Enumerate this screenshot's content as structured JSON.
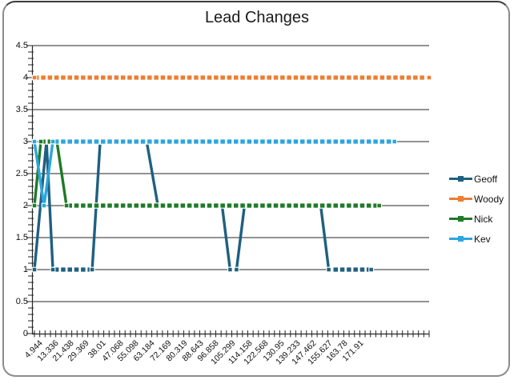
{
  "chart_data": {
    "type": "line",
    "title": "Lead Changes",
    "grid": true,
    "legend_position": "right",
    "y_axis": {
      "min": 0,
      "max": 4.5,
      "tick_step": 0.5,
      "tick_labels": [
        "0",
        "0.5",
        "1",
        "1.5",
        "2",
        "2.5",
        "3",
        "3.5",
        "4",
        "4.5"
      ]
    },
    "x_axis": {
      "tick_labels": [
        "4.944",
        "13.336",
        "21.438",
        "29.369",
        "38.01",
        "47.068",
        "55.098",
        "63.184",
        "72.169",
        "80.319",
        "88.643",
        "96.858",
        "105.299",
        "114.158",
        "122.568",
        "130.95",
        "139.233",
        "147.462",
        "155.627",
        "163.78",
        "171.91"
      ],
      "t_min": 4.944,
      "t_label_step": 8.348,
      "t_max": 210.4,
      "minor_tick_count": 75
    },
    "series": [
      {
        "name": "Geoff",
        "color": "#1F6080",
        "points": [
          [
            4.944,
            1
          ],
          [
            11.21,
            3
          ],
          [
            14.55,
            1
          ],
          [
            35.0,
            1
          ],
          [
            39.17,
            3
          ],
          [
            63.38,
            3
          ],
          [
            69.22,
            2
          ],
          [
            102.62,
            2
          ],
          [
            106.79,
            1
          ],
          [
            110.13,
            1
          ],
          [
            114.3,
            2
          ],
          [
            153.96,
            2
          ],
          [
            158.14,
            1
          ],
          [
            180.26,
            1
          ]
        ]
      },
      {
        "name": "Woody",
        "color": "#ED7D31",
        "points": [
          [
            4.944,
            4
          ],
          [
            210.4,
            4
          ]
        ]
      },
      {
        "name": "Nick",
        "color": "#1F7A28",
        "points": [
          [
            4.944,
            2
          ],
          [
            8.28,
            3
          ],
          [
            16.63,
            3
          ],
          [
            21.64,
            2
          ],
          [
            184.43,
            2
          ]
        ]
      },
      {
        "name": "Kev",
        "color": "#2CA5DE",
        "points": [
          [
            4.944,
            3
          ],
          [
            9.95,
            2
          ],
          [
            14.55,
            3
          ],
          [
            192.36,
            3
          ]
        ]
      }
    ]
  }
}
